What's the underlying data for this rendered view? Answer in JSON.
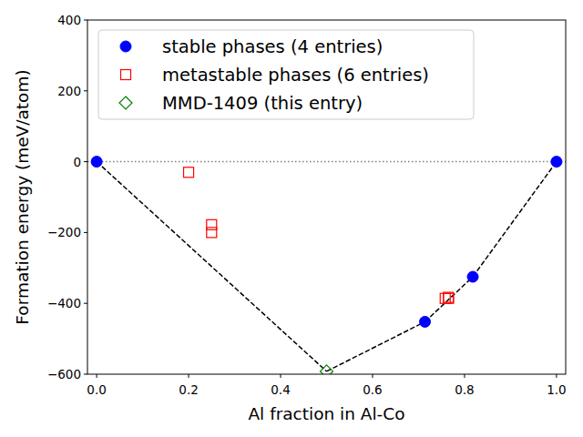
{
  "chart_data": {
    "type": "scatter",
    "xlabel": "Al fraction in Al-Co",
    "ylabel": "Formation energy (meV/atom)",
    "xlim": [
      -0.02,
      1.02
    ],
    "ylim": [
      -600,
      400
    ],
    "xticks": [
      {
        "value": 0,
        "label": "0.0"
      },
      {
        "value": 0.2,
        "label": "0.2"
      },
      {
        "value": 0.4,
        "label": "0.4"
      },
      {
        "value": 0.6,
        "label": "0.6"
      },
      {
        "value": 0.8,
        "label": "0.8"
      },
      {
        "value": 1,
        "label": "1.0"
      }
    ],
    "yticks": [
      400,
      200,
      0,
      {
        "value": -200,
        "label": "−200"
      },
      {
        "value": -400,
        "label": "−400"
      },
      {
        "value": -600,
        "label": "−600"
      }
    ],
    "legend": "upper left",
    "series": [
      {
        "name": "stable phases (4 entries)",
        "color": "#0000ff",
        "marker": "circle",
        "x": [
          0,
          0.714,
          0.818,
          1
        ],
        "values": [
          0,
          -452,
          -325,
          0
        ]
      },
      {
        "name": "metastable phases (6 entries)",
        "color": "#ff0000",
        "marker": "square",
        "x": [
          0.2,
          0.25,
          0.25,
          0.758,
          0.765,
          0.765
        ],
        "values": [
          -30,
          -178,
          -200,
          -386,
          -386,
          -383
        ]
      },
      {
        "name": "MMD-1409 (this entry)",
        "color": "#008000",
        "marker": "diamond",
        "x": [
          0.5
        ],
        "values": [
          -592
        ]
      }
    ]
  }
}
